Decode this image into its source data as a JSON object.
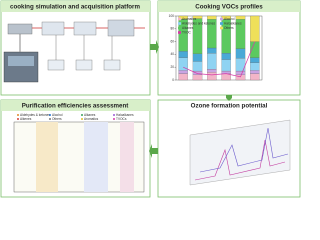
{
  "panels": {
    "platform": {
      "title": "cooking simulation and acquisition platform"
    },
    "profiles": {
      "title": "Cooking VOCs profiles"
    },
    "purification": {
      "title": "Purification efficiencies assessment",
      "legend": [
        "Aldehydes & ketones",
        "Alcohol",
        "Alkanes",
        "Haloalkanes",
        "Alkenes",
        "Others",
        "Aromatics",
        "TVOCs"
      ]
    },
    "ozone": {
      "title": "Ozone formation potential"
    }
  },
  "chart_data": {
    "type": "bar",
    "stacked": true,
    "categories": [
      null,
      null,
      null,
      null,
      null,
      null
    ],
    "series": [
      {
        "name": "Aromatics",
        "color": "#f2b5c8",
        "values": [
          10,
          8,
          12,
          10,
          8,
          10
        ]
      },
      {
        "name": "Alcohol",
        "color": "#c9a3e3",
        "values": [
          5,
          6,
          5,
          4,
          6,
          5
        ]
      },
      {
        "name": "Aldehydes and ketones",
        "color": "#8fd3f2",
        "values": [
          20,
          15,
          25,
          18,
          20,
          12
        ]
      },
      {
        "name": "Haloalkanes",
        "color": "#4aa9d6",
        "values": [
          10,
          12,
          8,
          10,
          15,
          8
        ]
      },
      {
        "name": "Alkanes",
        "color": "#5cc95f",
        "values": [
          50,
          55,
          45,
          53,
          46,
          25
        ]
      },
      {
        "name": "Others",
        "color": "#efe05a",
        "values": [
          5,
          4,
          5,
          5,
          5,
          40
        ]
      },
      {
        "name": "TVOC",
        "color": "#d63aa8",
        "type": "line",
        "axis": "y2",
        "values": [
          20,
          10,
          8,
          10,
          5,
          60
        ]
      }
    ],
    "ylim": [
      0,
      100
    ],
    "yticks": [
      0,
      20,
      40,
      60,
      80,
      100
    ],
    "y2lim": [
      0,
      100
    ]
  }
}
